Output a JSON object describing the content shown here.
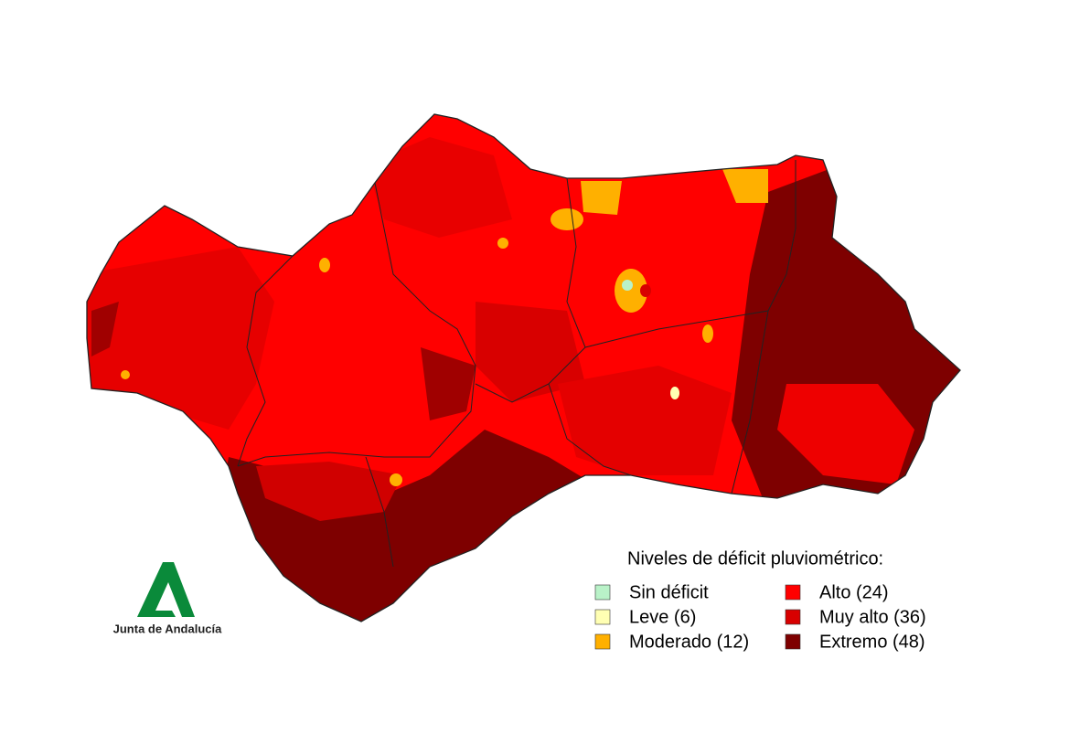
{
  "legend": {
    "title": "Niveles de déficit pluviométrico:",
    "items": [
      {
        "label": "Sin déficit",
        "color": "#b9f2c8"
      },
      {
        "label": "Leve (6)",
        "color": "#ffffb3"
      },
      {
        "label": "Moderado (12)",
        "color": "#ffb000"
      },
      {
        "label": "Alto (24)",
        "color": "#ff0000"
      },
      {
        "label": "Muy alto (36)",
        "color": "#d80000"
      },
      {
        "label": "Extremo (48)",
        "color": "#7e0000"
      }
    ]
  },
  "logo": {
    "text": "Junta de Andalucía"
  }
}
